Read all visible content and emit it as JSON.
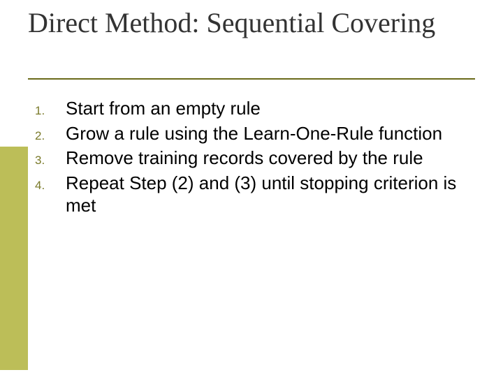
{
  "slide": {
    "title": "Direct Method: Sequential Covering",
    "title_color": "#333333",
    "title_font_family": "Times New Roman, serif",
    "title_font_size_pt": 40,
    "rule_color": "#6a6a1a",
    "accent_block_color": "#bcbe58",
    "background_color": "#ffffff",
    "list": {
      "number_color": "#7a7a2a",
      "number_font_size_pt": 17,
      "text_color": "#000000",
      "text_font_size_pt": 26,
      "items": [
        {
          "n": "1.",
          "text": "Start from an empty rule"
        },
        {
          "n": "2.",
          "text": "Grow a rule using the Learn-One-Rule function"
        },
        {
          "n": "3.",
          "text": "Remove training records covered by the rule"
        },
        {
          "n": "4.",
          "text": "Repeat Step (2) and (3) until stopping criterion is met"
        }
      ]
    }
  }
}
